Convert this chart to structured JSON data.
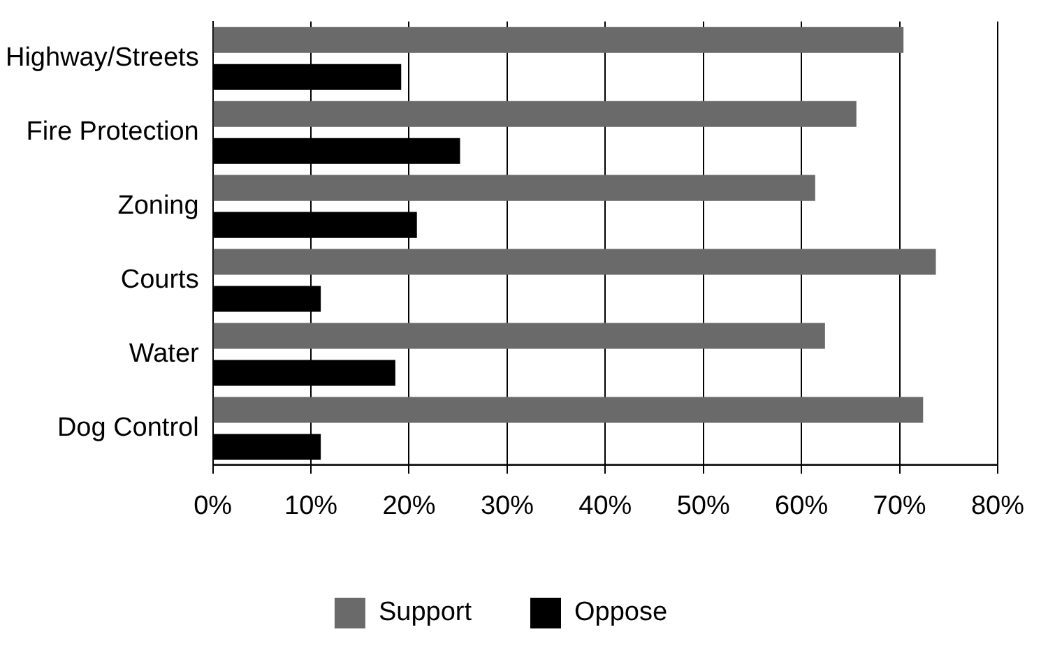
{
  "chart_data": {
    "type": "bar",
    "orientation": "horizontal",
    "categories": [
      "Highway/Streets",
      "Fire Protection",
      "Zoning",
      "Courts",
      "Water",
      "Dog Control"
    ],
    "series": [
      {
        "name": "Support",
        "color": "#6a6a6a",
        "values": [
          70.4,
          65.6,
          61.4,
          73.7,
          62.4,
          72.4
        ]
      },
      {
        "name": "Oppose",
        "color": "#000000",
        "values": [
          19.2,
          25.2,
          20.8,
          11.0,
          18.6,
          11.0
        ]
      }
    ],
    "xlim": [
      0,
      80
    ],
    "xticks": [
      {
        "value": 0,
        "label": "0%"
      },
      {
        "value": 10,
        "label": "10%"
      },
      {
        "value": 20,
        "label": "20%"
      },
      {
        "value": 30,
        "label": "30%"
      },
      {
        "value": 40,
        "label": "40%"
      },
      {
        "value": 50,
        "label": "50%"
      },
      {
        "value": 60,
        "label": "60%"
      },
      {
        "value": 70,
        "label": "70%"
      },
      {
        "value": 80,
        "label": "80%"
      }
    ],
    "grid": "x",
    "legend": "bottom"
  }
}
